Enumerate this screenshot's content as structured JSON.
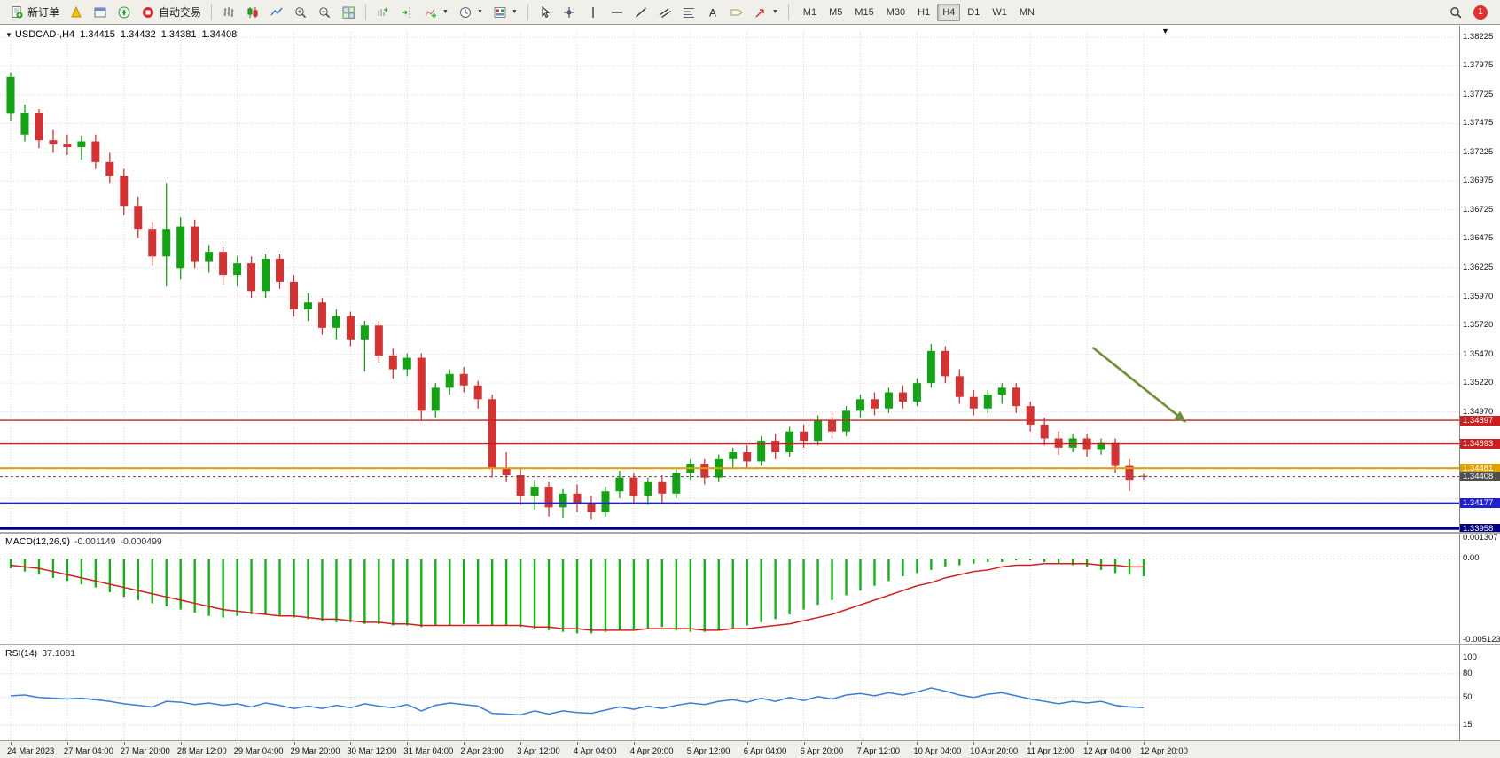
{
  "toolbar": {
    "new_order": "新订单",
    "auto_trading": "自动交易",
    "timeframes": [
      "M1",
      "M5",
      "M15",
      "M30",
      "H1",
      "H4",
      "D1",
      "W1",
      "MN"
    ],
    "active_timeframe": "H4",
    "badge_count": "1"
  },
  "chart_header": {
    "symbol": "USDCAD-,H4",
    "open": "1.34415",
    "high": "1.34432",
    "low": "1.34381",
    "close": "1.34408"
  },
  "chart_data": {
    "type": "candlestick",
    "symbol": "USDCAD",
    "timeframe": "H4",
    "ylim": [
      1.33958,
      1.38225
    ],
    "candles_per_label": 4,
    "colors": {
      "bull": "#16a216",
      "bear": "#d03434",
      "grid": "#d9d9d9",
      "background": "#ffffff"
    },
    "price_axis_labels": [
      {
        "label": "1.38225",
        "price": 1.38225
      },
      {
        "label": "1.37975",
        "price": 1.37975
      },
      {
        "label": "1.37725",
        "price": 1.37725
      },
      {
        "label": "1.37475",
        "price": 1.37475
      },
      {
        "label": "1.37225",
        "price": 1.37225
      },
      {
        "label": "1.36975",
        "price": 1.36975
      },
      {
        "label": "1.36725",
        "price": 1.36725
      },
      {
        "label": "1.36475",
        "price": 1.36475
      },
      {
        "label": "1.36225",
        "price": 1.36225
      },
      {
        "label": "1.35970",
        "price": 1.3597
      },
      {
        "label": "1.35720",
        "price": 1.3572
      },
      {
        "label": "1.35470",
        "price": 1.3547
      },
      {
        "label": "1.35220",
        "price": 1.3522
      },
      {
        "label": "1.34970",
        "price": 1.3497
      }
    ],
    "extra_grid_prices": [
      1.3472,
      1.3447,
      1.34215
    ],
    "levels": [
      {
        "price": 1.34897,
        "label": "1.34897",
        "color": "#cc2020",
        "width": 1.4
      },
      {
        "price": 1.34693,
        "label": "1.34693",
        "color": "#cc2020",
        "width": 1.4
      },
      {
        "price": 1.34481,
        "label": "1.34481",
        "color": "#e0a000",
        "width": 2
      },
      {
        "price": 1.34177,
        "label": "1.34177",
        "color": "#2020cc",
        "width": 2
      },
      {
        "price": 1.33958,
        "label": "1.33958",
        "color": "#000080",
        "width": 3.5
      }
    ],
    "current_price": {
      "price": 1.34408,
      "label": "1.34408",
      "color": "#4f4f4f"
    },
    "time_labels": [
      "24 Mar 2023",
      "27 Mar 04:00",
      "27 Mar 20:00",
      "28 Mar 12:00",
      "29 Mar 04:00",
      "29 Mar 20:00",
      "30 Mar 12:00",
      "31 Mar 04:00",
      "2 Apr 23:00",
      "3 Apr 12:00",
      "4 Apr 04:00",
      "4 Apr 20:00",
      "5 Apr 12:00",
      "6 Apr 04:00",
      "6 Apr 20:00",
      "7 Apr 12:00",
      "10 Apr 04:00",
      "10 Apr 20:00",
      "11 Apr 12:00",
      "12 Apr 04:00",
      "12 Apr 20:00"
    ],
    "ohlc": [
      [
        1.3756,
        1.3792,
        1.375,
        1.3788
      ],
      [
        1.3738,
        1.3764,
        1.3732,
        1.3757
      ],
      [
        1.3757,
        1.376,
        1.3726,
        1.3733
      ],
      [
        1.3733,
        1.3742,
        1.3722,
        1.373
      ],
      [
        1.373,
        1.3738,
        1.372,
        1.3727
      ],
      [
        1.3727,
        1.3737,
        1.3716,
        1.3732
      ],
      [
        1.3732,
        1.3738,
        1.3708,
        1.3714
      ],
      [
        1.3714,
        1.3722,
        1.3696,
        1.3702
      ],
      [
        1.3702,
        1.3708,
        1.3668,
        1.3676
      ],
      [
        1.3676,
        1.3684,
        1.3648,
        1.3656
      ],
      [
        1.3656,
        1.3662,
        1.3624,
        1.3632
      ],
      [
        1.3632,
        1.3696,
        1.3606,
        1.3656
      ],
      [
        1.3622,
        1.3666,
        1.3612,
        1.3658
      ],
      [
        1.3658,
        1.3664,
        1.3622,
        1.3628
      ],
      [
        1.3628,
        1.3642,
        1.3618,
        1.3636
      ],
      [
        1.3636,
        1.364,
        1.3608,
        1.3616
      ],
      [
        1.3616,
        1.3632,
        1.3606,
        1.3626
      ],
      [
        1.3626,
        1.3632,
        1.3596,
        1.3602
      ],
      [
        1.3602,
        1.3634,
        1.3596,
        1.363
      ],
      [
        1.363,
        1.3634,
        1.3604,
        1.361
      ],
      [
        1.361,
        1.3616,
        1.358,
        1.3586
      ],
      [
        1.3586,
        1.36,
        1.3576,
        1.3592
      ],
      [
        1.3592,
        1.3596,
        1.3564,
        1.357
      ],
      [
        1.357,
        1.3586,
        1.356,
        1.358
      ],
      [
        1.358,
        1.3584,
        1.3554,
        1.356
      ],
      [
        1.356,
        1.3576,
        1.3532,
        1.3572
      ],
      [
        1.3572,
        1.3576,
        1.354,
        1.3546
      ],
      [
        1.3546,
        1.3552,
        1.3526,
        1.3534
      ],
      [
        1.3534,
        1.3548,
        1.3528,
        1.3544
      ],
      [
        1.3544,
        1.3548,
        1.349,
        1.3498
      ],
      [
        1.3498,
        1.3522,
        1.3492,
        1.3518
      ],
      [
        1.3518,
        1.3534,
        1.3512,
        1.353
      ],
      [
        1.353,
        1.3536,
        1.3514,
        1.352
      ],
      [
        1.352,
        1.3524,
        1.35,
        1.3508
      ],
      [
        1.3508,
        1.3512,
        1.344,
        1.3448
      ],
      [
        1.3448,
        1.3462,
        1.3436,
        1.3442
      ],
      [
        1.3442,
        1.3448,
        1.3416,
        1.3424
      ],
      [
        1.3424,
        1.3438,
        1.3412,
        1.3432
      ],
      [
        1.3432,
        1.3436,
        1.3406,
        1.3414
      ],
      [
        1.3414,
        1.343,
        1.3405,
        1.3426
      ],
      [
        1.3426,
        1.3434,
        1.341,
        1.3418
      ],
      [
        1.3418,
        1.3424,
        1.3404,
        1.341
      ],
      [
        1.341,
        1.3432,
        1.3406,
        1.3428
      ],
      [
        1.3428,
        1.3446,
        1.3422,
        1.344
      ],
      [
        1.344,
        1.3444,
        1.3418,
        1.3424
      ],
      [
        1.3424,
        1.344,
        1.3416,
        1.3436
      ],
      [
        1.3436,
        1.3442,
        1.3418,
        1.3426
      ],
      [
        1.3426,
        1.3448,
        1.3422,
        1.3444
      ],
      [
        1.3444,
        1.3456,
        1.3438,
        1.3452
      ],
      [
        1.3452,
        1.3456,
        1.3434,
        1.344
      ],
      [
        1.344,
        1.346,
        1.3436,
        1.3456
      ],
      [
        1.3456,
        1.3466,
        1.3448,
        1.3462
      ],
      [
        1.3462,
        1.3468,
        1.3448,
        1.3454
      ],
      [
        1.3454,
        1.3476,
        1.345,
        1.3472
      ],
      [
        1.3472,
        1.3478,
        1.3456,
        1.3462
      ],
      [
        1.3462,
        1.3484,
        1.3458,
        1.348
      ],
      [
        1.348,
        1.3486,
        1.3466,
        1.3472
      ],
      [
        1.3472,
        1.3494,
        1.3468,
        1.349
      ],
      [
        1.349,
        1.3496,
        1.3474,
        1.348
      ],
      [
        1.348,
        1.3502,
        1.3476,
        1.3498
      ],
      [
        1.3498,
        1.3512,
        1.3492,
        1.3508
      ],
      [
        1.3508,
        1.3514,
        1.3494,
        1.35
      ],
      [
        1.35,
        1.3518,
        1.3496,
        1.3514
      ],
      [
        1.3514,
        1.352,
        1.35,
        1.3506
      ],
      [
        1.3506,
        1.3526,
        1.3502,
        1.3522
      ],
      [
        1.3522,
        1.3556,
        1.3518,
        1.355
      ],
      [
        1.355,
        1.3554,
        1.3522,
        1.3528
      ],
      [
        1.3528,
        1.3534,
        1.3504,
        1.351
      ],
      [
        1.351,
        1.3516,
        1.3494,
        1.35
      ],
      [
        1.35,
        1.3516,
        1.3496,
        1.3512
      ],
      [
        1.3512,
        1.3522,
        1.3504,
        1.3518
      ],
      [
        1.3518,
        1.3522,
        1.3496,
        1.3502
      ],
      [
        1.3502,
        1.3506,
        1.348,
        1.3486
      ],
      [
        1.3486,
        1.3492,
        1.3468,
        1.3474
      ],
      [
        1.3474,
        1.348,
        1.346,
        1.3466
      ],
      [
        1.3466,
        1.3478,
        1.3462,
        1.3474
      ],
      [
        1.3474,
        1.3478,
        1.3458,
        1.3464
      ],
      [
        1.3464,
        1.3474,
        1.346,
        1.347
      ],
      [
        1.347,
        1.3474,
        1.3444,
        1.345
      ],
      [
        1.345,
        1.3456,
        1.3428,
        1.3438
      ],
      [
        1.34415,
        1.34432,
        1.34381,
        1.34408
      ]
    ],
    "macd": {
      "name": "MACD(12,26,9)",
      "value_main": "-0.001149",
      "value_signal": "-0.000499",
      "ylim": [
        -0.005123,
        0.001307
      ],
      "axis_labels": [
        {
          "label": "0.001307",
          "value": 0.001307
        },
        {
          "label": "0.00",
          "value": 0
        },
        {
          "label": "-0.005123",
          "value": -0.005123
        }
      ],
      "histogram_color": "#18b018",
      "signal_color": "#d02020",
      "histogram": [
        -0.0006,
        -0.0008,
        -0.001,
        -0.0012,
        -0.0014,
        -0.0016,
        -0.0018,
        -0.0021,
        -0.0024,
        -0.0026,
        -0.0028,
        -0.003,
        -0.0032,
        -0.0034,
        -0.0036,
        -0.0037,
        -0.0036,
        -0.0035,
        -0.0035,
        -0.0036,
        -0.0037,
        -0.0038,
        -0.0039,
        -0.004,
        -0.004,
        -0.0041,
        -0.0041,
        -0.0042,
        -0.0042,
        -0.0043,
        -0.0042,
        -0.0042,
        -0.0041,
        -0.0041,
        -0.0042,
        -0.0042,
        -0.0043,
        -0.0044,
        -0.0045,
        -0.0046,
        -0.0047,
        -0.0047,
        -0.0046,
        -0.0045,
        -0.0044,
        -0.0044,
        -0.0043,
        -0.0045,
        -0.0046,
        -0.0046,
        -0.0045,
        -0.0044,
        -0.0042,
        -0.004,
        -0.0038,
        -0.0035,
        -0.0032,
        -0.0029,
        -0.0026,
        -0.0023,
        -0.002,
        -0.0017,
        -0.0014,
        -0.0011,
        -0.0009,
        -0.0007,
        -0.0005,
        -0.0004,
        -0.0003,
        -0.0002,
        -0.0002,
        -0.0001,
        -0.0001,
        -0.0002,
        -0.0003,
        -0.0004,
        -0.0005,
        -0.0007,
        -0.0009,
        -0.001,
        -0.0011
      ],
      "signal": [
        -0.0004,
        -0.0005,
        -0.0006,
        -0.0008,
        -0.001,
        -0.0012,
        -0.0014,
        -0.0016,
        -0.0018,
        -0.002,
        -0.0022,
        -0.0024,
        -0.0026,
        -0.0028,
        -0.003,
        -0.0032,
        -0.0033,
        -0.0034,
        -0.0035,
        -0.0036,
        -0.0036,
        -0.0037,
        -0.0038,
        -0.0038,
        -0.0039,
        -0.004,
        -0.004,
        -0.0041,
        -0.0041,
        -0.0042,
        -0.0042,
        -0.0042,
        -0.0042,
        -0.0042,
        -0.0042,
        -0.0042,
        -0.0042,
        -0.0043,
        -0.0043,
        -0.0044,
        -0.0044,
        -0.0045,
        -0.0045,
        -0.0045,
        -0.0045,
        -0.0044,
        -0.0044,
        -0.0044,
        -0.0044,
        -0.0045,
        -0.0045,
        -0.0044,
        -0.0044,
        -0.0043,
        -0.0042,
        -0.0041,
        -0.0039,
        -0.0037,
        -0.0035,
        -0.0032,
        -0.0029,
        -0.0026,
        -0.0023,
        -0.002,
        -0.0017,
        -0.0015,
        -0.0012,
        -0.001,
        -0.0008,
        -0.0007,
        -0.0005,
        -0.0004,
        -0.0004,
        -0.0003,
        -0.0003,
        -0.0003,
        -0.0003,
        -0.0004,
        -0.0004,
        -0.0005,
        -0.0005
      ]
    },
    "rsi": {
      "name": "RSI(14)",
      "value": "37.1081",
      "ylim": [
        15,
        100
      ],
      "axis_labels": [
        {
          "label": "100",
          "value": 100
        },
        {
          "label": "80",
          "value": 80
        },
        {
          "label": "50",
          "value": 50
        },
        {
          "label": "15",
          "value": 15
        }
      ],
      "dashed_levels": [
        80,
        50,
        15
      ],
      "color": "#3b7dd8",
      "values": [
        52,
        53,
        50,
        49,
        48,
        49,
        47,
        45,
        42,
        40,
        38,
        45,
        44,
        41,
        43,
        40,
        42,
        38,
        43,
        40,
        36,
        39,
        36,
        40,
        37,
        42,
        39,
        37,
        41,
        33,
        40,
        43,
        41,
        39,
        30,
        29,
        28,
        33,
        29,
        33,
        31,
        30,
        34,
        38,
        35,
        39,
        36,
        40,
        43,
        41,
        45,
        47,
        44,
        49,
        45,
        50,
        46,
        51,
        48,
        53,
        55,
        52,
        56,
        53,
        57,
        62,
        58,
        53,
        50,
        54,
        56,
        52,
        48,
        45,
        42,
        45,
        43,
        45,
        40,
        38,
        37.1
      ]
    },
    "arrow": {
      "from": {
        "t": 76.4,
        "price": 1.3553
      },
      "to": {
        "t": 82.7,
        "price": 1.3491
      },
      "color": "#6f8f3a"
    }
  }
}
